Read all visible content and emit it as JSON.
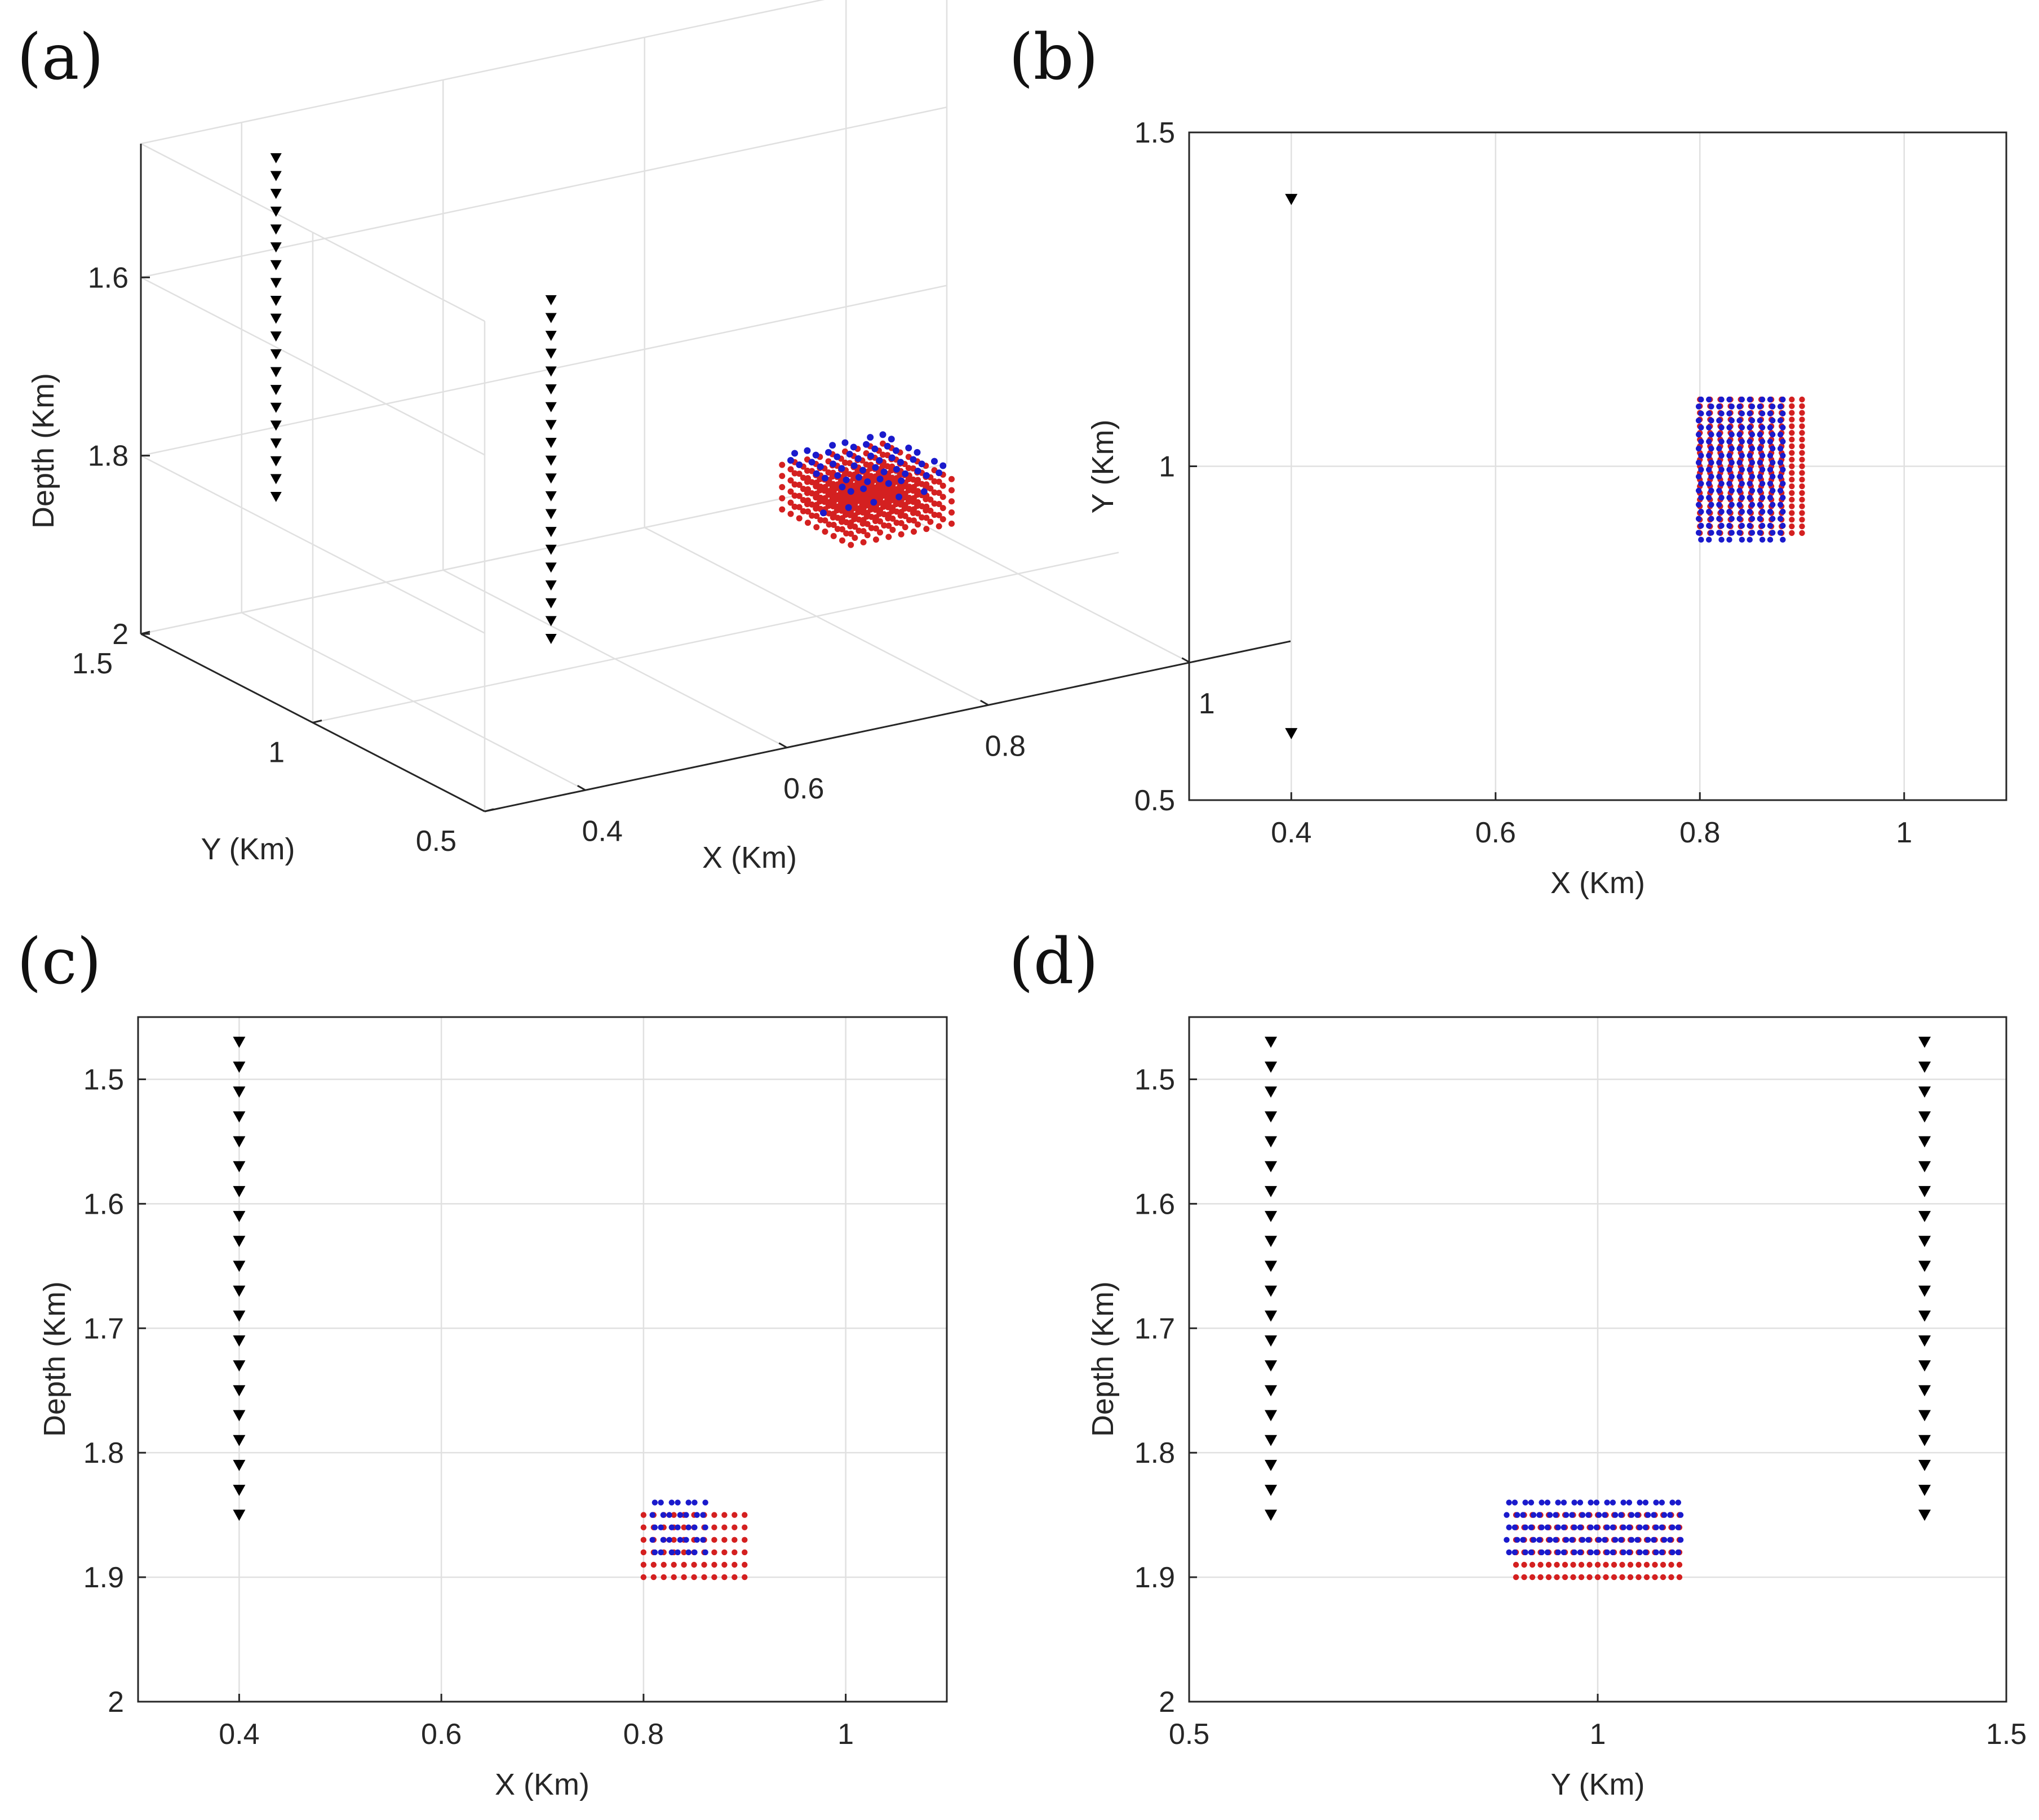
{
  "colors": {
    "receiver": "#000000",
    "source_red": "#d42020",
    "source_blue": "#1a1acc",
    "grid": "#e0e0e0",
    "axis": "#262626"
  },
  "chart_data": [
    {
      "id": "a",
      "panel_label": "(a)",
      "type": "scatter",
      "projection": "3d",
      "xlabel": "X (Km)",
      "ylabel": "Y (Km)",
      "zlabel": "Depth (Km)",
      "xlim": [
        0.3,
        1.1
      ],
      "ylim": [
        0.5,
        1.5
      ],
      "zlim": [
        1.45,
        2.0
      ],
      "z_reversed": true,
      "xticks": [
        0.4,
        0.6,
        0.8,
        1
      ],
      "yticks": [
        0.5,
        1,
        1.5
      ],
      "zticks": [
        1.6,
        1.8,
        2
      ],
      "grid": true,
      "series": [
        {
          "marker": "triangle-down",
          "color": "#000000",
          "wells": [
            {
              "x": 0.4,
              "y": 1.4
            },
            {
              "x": 0.4,
              "y": 0.6
            }
          ],
          "z_top": 1.47,
          "z_bottom": 1.85,
          "count": 20
        },
        {
          "marker": "dot",
          "color": "#d42020",
          "x_range": [
            0.8,
            0.9
          ],
          "y_range": [
            0.9,
            1.1
          ],
          "z_range": [
            1.85,
            1.9
          ]
        },
        {
          "marker": "dot",
          "color": "#1a1acc",
          "x_range": [
            0.8,
            0.9
          ],
          "y_range": [
            0.9,
            1.1
          ],
          "z_range": [
            1.84,
            1.88
          ]
        }
      ]
    },
    {
      "id": "b",
      "panel_label": "(b)",
      "type": "scatter",
      "xlabel": "X (Km)",
      "ylabel": "Y (Km)",
      "xlim": [
        0.3,
        1.1
      ],
      "ylim": [
        0.5,
        1.5
      ],
      "xticks": [
        0.4,
        0.6,
        0.8,
        1
      ],
      "yticks": [
        0.5,
        1,
        1.5
      ],
      "grid": true,
      "series": [
        {
          "marker": "triangle-down",
          "color": "#000000",
          "points": [
            [
              0.4,
              1.4
            ],
            [
              0.4,
              0.6
            ]
          ]
        },
        {
          "marker": "dot",
          "color": "#d42020",
          "x_range": [
            0.8,
            0.9
          ],
          "y_range": [
            0.9,
            1.1
          ],
          "nx": 11,
          "ny": 21
        },
        {
          "marker": "dot",
          "color": "#1a1acc",
          "x_range": [
            0.8,
            0.88
          ],
          "y_range": [
            0.89,
            1.1
          ],
          "nx": 9,
          "ny": 21
        }
      ]
    },
    {
      "id": "c",
      "panel_label": "(c)",
      "type": "scatter",
      "xlabel": "X (Km)",
      "ylabel": "Depth (Km)",
      "xlim": [
        0.3,
        1.1
      ],
      "ylim": [
        1.45,
        2.0
      ],
      "y_reversed": true,
      "xticks": [
        0.4,
        0.6,
        0.8,
        1
      ],
      "yticks": [
        1.5,
        1.6,
        1.7,
        1.8,
        1.9,
        2
      ],
      "grid": true,
      "series": [
        {
          "marker": "triangle-down",
          "color": "#000000",
          "x": 0.4,
          "y_range": [
            1.47,
            1.85
          ],
          "count": 20
        },
        {
          "marker": "dot",
          "color": "#d42020",
          "x_range": [
            0.8,
            0.9
          ],
          "y_range": [
            1.85,
            1.9
          ],
          "nx": 11,
          "ny": 6
        },
        {
          "marker": "dot",
          "color": "#1a1acc",
          "x_range": [
            0.81,
            0.86
          ],
          "y_range": [
            1.84,
            1.88
          ],
          "nx": 7,
          "ny": 5
        }
      ]
    },
    {
      "id": "d",
      "panel_label": "(d)",
      "type": "scatter",
      "xlabel": "Y (Km)",
      "ylabel": "Depth (Km)",
      "xlim": [
        0.5,
        1.5
      ],
      "ylim": [
        1.45,
        2.0
      ],
      "y_reversed": true,
      "xticks": [
        0.5,
        1,
        1.5
      ],
      "yticks": [
        1.5,
        1.6,
        1.7,
        1.8,
        1.9,
        2
      ],
      "grid": true,
      "series": [
        {
          "marker": "triangle-down",
          "color": "#000000",
          "x": 0.6,
          "y_range": [
            1.47,
            1.85
          ],
          "count": 20
        },
        {
          "marker": "triangle-down",
          "color": "#000000",
          "x": 1.4,
          "y_range": [
            1.47,
            1.85
          ],
          "count": 20
        },
        {
          "marker": "dot",
          "color": "#d42020",
          "x_range": [
            0.9,
            1.1
          ],
          "y_range": [
            1.85,
            1.9
          ],
          "nx": 21,
          "ny": 6
        },
        {
          "marker": "dot",
          "color": "#1a1acc",
          "x_range": [
            0.89,
            1.1
          ],
          "y_range": [
            1.84,
            1.88
          ],
          "nx": 22,
          "ny": 5
        }
      ]
    }
  ]
}
